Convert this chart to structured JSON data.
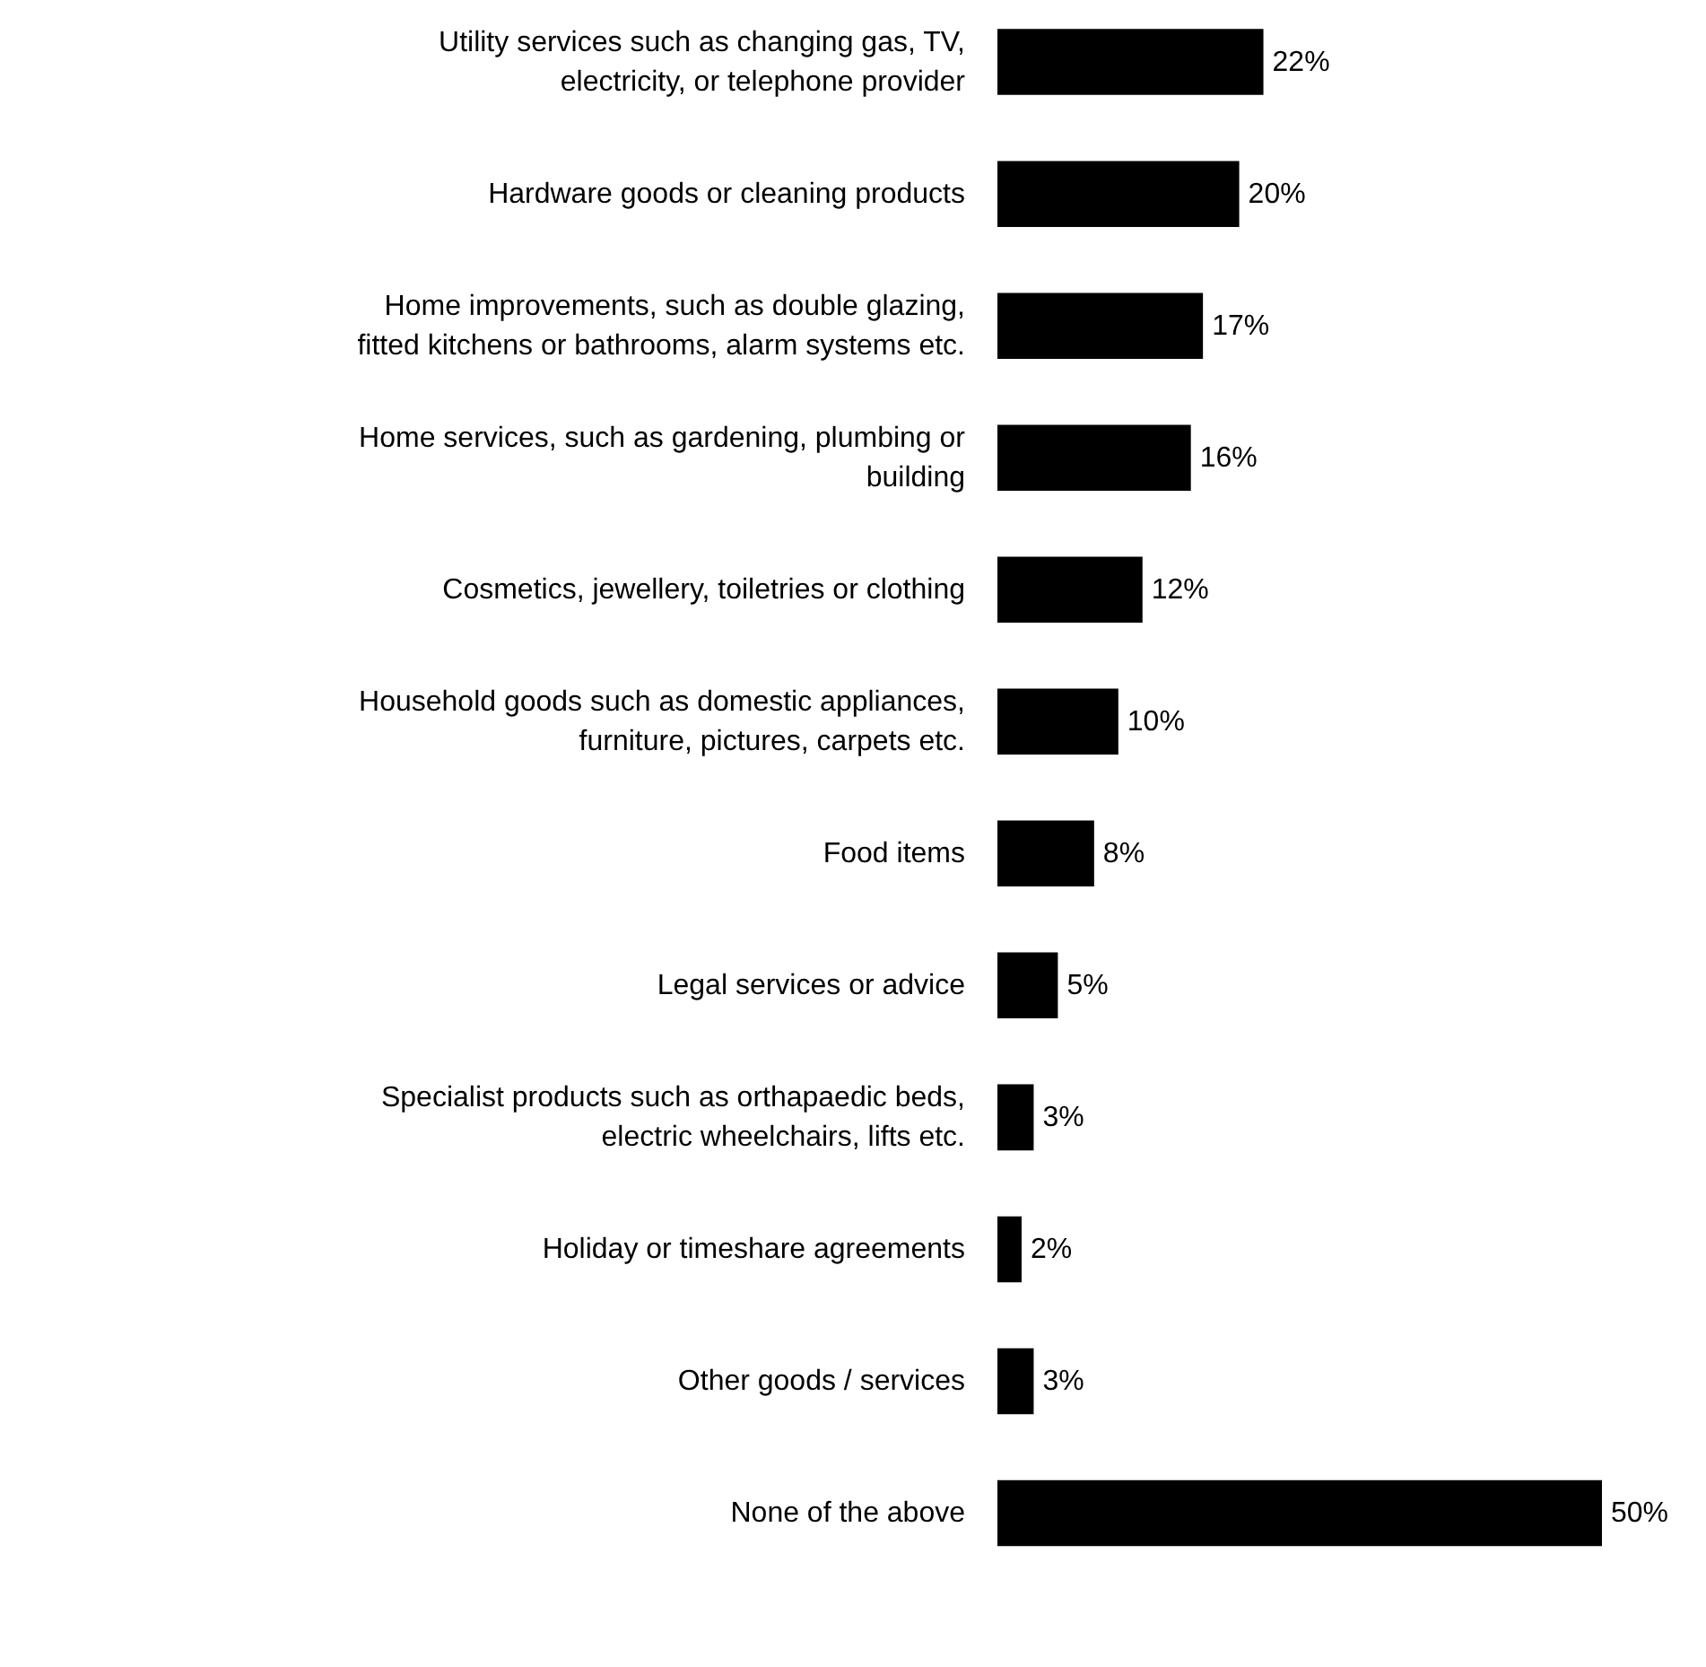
{
  "chart_data": {
    "type": "bar",
    "orientation": "horizontal",
    "categories": [
      "Utility services such as changing gas, TV, electricity, or telephone provider",
      "Hardware goods or cleaning products",
      "Home improvements, such as double glazing, fitted kitchens or bathrooms, alarm systems etc.",
      "Home services, such as gardening, plumbing or building",
      "Cosmetics, jewellery, toiletries or clothing",
      "Household goods such as domestic appliances, furniture, pictures, carpets etc.",
      "Food items",
      "Legal services or advice",
      "Specialist products such as orthapaedic beds, electric wheelchairs, lifts etc.",
      "Holiday or timeshare agreements",
      "Other goods / services",
      "None of the above"
    ],
    "values": [
      22,
      20,
      17,
      16,
      12,
      10,
      8,
      5,
      3,
      2,
      3,
      50
    ],
    "value_labels": [
      "22%",
      "20%",
      "17%",
      "16%",
      "12%",
      "10%",
      "8%",
      "5%",
      "3%",
      "2%",
      "3%",
      "50%"
    ],
    "color": "#000000"
  }
}
